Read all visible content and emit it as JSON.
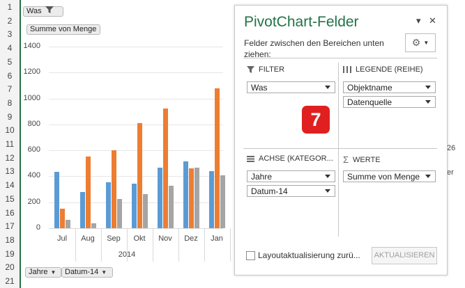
{
  "row_numbers": [
    "1",
    "2",
    "3",
    "4",
    "5",
    "6",
    "7",
    "8",
    "9",
    "10",
    "11",
    "12",
    "13",
    "14",
    "15",
    "16",
    "17",
    "18",
    "19",
    "20",
    "21"
  ],
  "chart_buttons": {
    "filter_was": "Was",
    "values_button": "Summe von Menge",
    "axis_jahre": "Jahre",
    "axis_datum": "Datum-14"
  },
  "chart_data": {
    "type": "bar",
    "categories": [
      "Jul",
      "Aug",
      "Sep",
      "Okt",
      "Nov",
      "Dez",
      "Jan"
    ],
    "group_label": "2014",
    "ylim": [
      0,
      1400
    ],
    "yticks": [
      "0",
      "200",
      "400",
      "600",
      "800",
      "1000",
      "1200",
      "1400"
    ],
    "series": [
      {
        "values": [
          435,
          280,
          355,
          345,
          465,
          515,
          440
        ],
        "color": "#5b9bd5"
      },
      {
        "values": [
          150,
          555,
          600,
          810,
          920,
          460,
          1080
        ],
        "color": "#ed7d31"
      },
      {
        "values": [
          65,
          40,
          225,
          265,
          325,
          465,
          405
        ],
        "color": "#a5a5a5"
      }
    ]
  },
  "panel": {
    "title": "PivotChart-Felder",
    "dropdown_symbol": "▾",
    "close_symbol": "✕",
    "description": "Felder zwischen den Bereichen unten ziehen:",
    "filter": {
      "heading": "FILTER",
      "items": [
        "Was"
      ]
    },
    "legend": {
      "heading": "LEGENDE (REIHE)",
      "items": [
        "Objektname",
        "Datenquelle"
      ]
    },
    "axis": {
      "heading": "ACHSE (KATEGOR...",
      "items": [
        "Jahre",
        "Datum-14"
      ]
    },
    "values": {
      "heading": "WERTE",
      "items": [
        "Summe von Menge"
      ]
    },
    "checkbox_label": "Layoutaktualisierung zurü...",
    "update_button": "AKTUALISIEREN"
  },
  "step_badge": "7",
  "right_fragments": [
    "26",
    "er"
  ]
}
